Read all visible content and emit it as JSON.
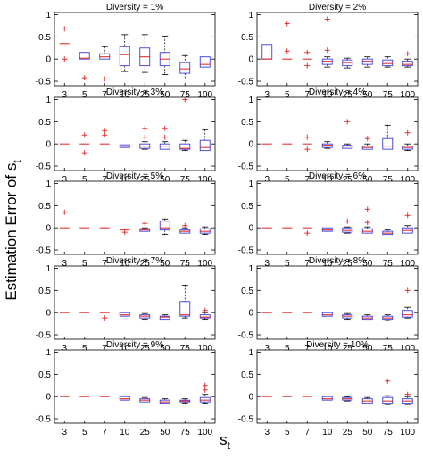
{
  "figure": {
    "ylabel": "Estimation Error of s",
    "ylabel_subscript": "t",
    "xlabel": "s",
    "xlabel_subscript": "t"
  },
  "colors": {
    "box": "#3b3bd9",
    "median": "#e02020",
    "outlier": "#e02020",
    "whisker": "#000000",
    "frame": "#000000"
  },
  "chart_data": [
    {
      "type": "box",
      "title": "Diversity = 1%",
      "categories": [
        "3",
        "5",
        "7",
        "10",
        "25",
        "50",
        "75",
        "100"
      ],
      "yticks": [
        "-0.5",
        "0",
        "0.5",
        "1"
      ],
      "ylim": [
        -0.6,
        1.05
      ],
      "boxes": [
        {
          "q1": 0.35,
          "median": 0.35,
          "q3": 0.35,
          "wlo": 0.35,
          "whi": 0.35,
          "outliers": [
            0.68,
            0.0
          ]
        },
        {
          "q1": 0.0,
          "median": 0.02,
          "q3": 0.15,
          "wlo": 0.0,
          "whi": 0.15,
          "outliers": [
            -0.42
          ]
        },
        {
          "q1": 0.0,
          "median": 0.05,
          "q3": 0.12,
          "wlo": 0.0,
          "whi": 0.28,
          "outliers": [
            -0.45
          ]
        },
        {
          "q1": -0.15,
          "median": 0.1,
          "q3": 0.28,
          "wlo": -0.28,
          "whi": 0.55,
          "outliers": []
        },
        {
          "q1": -0.15,
          "median": 0.05,
          "q3": 0.25,
          "wlo": -0.3,
          "whi": 0.55,
          "outliers": []
        },
        {
          "q1": -0.15,
          "median": 0.0,
          "q3": 0.15,
          "wlo": -0.35,
          "whi": 0.52,
          "outliers": []
        },
        {
          "q1": -0.32,
          "median": -0.22,
          "q3": -0.08,
          "wlo": -0.45,
          "whi": 0.08,
          "outliers": []
        },
        {
          "q1": -0.18,
          "median": -0.12,
          "q3": 0.05,
          "wlo": -0.18,
          "whi": 0.05,
          "outliers": []
        }
      ]
    },
    {
      "type": "box",
      "title": "Diversity = 2%",
      "categories": [
        "3",
        "5",
        "7",
        "10",
        "25",
        "50",
        "75",
        "100"
      ],
      "yticks": [
        "-0.5",
        "0",
        "0.5",
        "1"
      ],
      "ylim": [
        -0.6,
        1.05
      ],
      "boxes": [
        {
          "q1": 0.0,
          "median": 0.0,
          "q3": 0.33,
          "wlo": 0.0,
          "whi": 0.33,
          "outliers": []
        },
        {
          "q1": 0.0,
          "median": 0.0,
          "q3": 0.0,
          "wlo": 0.0,
          "whi": 0.0,
          "outliers": [
            0.8,
            0.18
          ]
        },
        {
          "q1": 0.0,
          "median": 0.0,
          "q3": 0.0,
          "wlo": 0.0,
          "whi": 0.0,
          "outliers": [
            0.15,
            -0.15
          ]
        },
        {
          "q1": -0.12,
          "median": -0.05,
          "q3": 0.0,
          "wlo": -0.18,
          "whi": 0.05,
          "outliers": [
            0.9,
            0.2
          ]
        },
        {
          "q1": -0.15,
          "median": -0.08,
          "q3": -0.02,
          "wlo": -0.2,
          "whi": 0.02,
          "outliers": []
        },
        {
          "q1": -0.12,
          "median": -0.05,
          "q3": 0.0,
          "wlo": -0.18,
          "whi": 0.05,
          "outliers": []
        },
        {
          "q1": -0.15,
          "median": -0.1,
          "q3": -0.02,
          "wlo": -0.18,
          "whi": 0.05,
          "outliers": []
        },
        {
          "q1": -0.15,
          "median": -0.12,
          "q3": -0.05,
          "wlo": -0.18,
          "whi": 0.0,
          "outliers": [
            0.12
          ]
        }
      ]
    },
    {
      "type": "box",
      "title": "Diversity = 3%",
      "categories": [
        "3",
        "5",
        "7",
        "10",
        "25",
        "50",
        "75",
        "100"
      ],
      "yticks": [
        "-0.5",
        "0",
        "0.5",
        "1"
      ],
      "ylim": [
        -0.6,
        1.05
      ],
      "boxes": [
        {
          "q1": 0.0,
          "median": 0.0,
          "q3": 0.0,
          "wlo": 0.0,
          "whi": 0.0,
          "outliers": []
        },
        {
          "q1": 0.0,
          "median": 0.0,
          "q3": 0.0,
          "wlo": 0.0,
          "whi": 0.0,
          "outliers": [
            0.2,
            -0.2
          ]
        },
        {
          "q1": 0.0,
          "median": 0.0,
          "q3": 0.0,
          "wlo": 0.0,
          "whi": 0.0,
          "outliers": [
            0.3,
            0.2
          ]
        },
        {
          "q1": -0.08,
          "median": -0.05,
          "q3": -0.02,
          "wlo": -0.08,
          "whi": -0.02,
          "outliers": []
        },
        {
          "q1": -0.1,
          "median": -0.05,
          "q3": 0.0,
          "wlo": -0.12,
          "whi": 0.05,
          "outliers": [
            0.35,
            0.15
          ]
        },
        {
          "q1": -0.12,
          "median": -0.05,
          "q3": 0.0,
          "wlo": -0.12,
          "whi": 0.05,
          "outliers": [
            0.35,
            0.15
          ]
        },
        {
          "q1": -0.12,
          "median": -0.1,
          "q3": 0.0,
          "wlo": -0.15,
          "whi": 0.08,
          "outliers": [
            1.0
          ]
        },
        {
          "q1": -0.15,
          "median": -0.08,
          "q3": 0.08,
          "wlo": -0.15,
          "whi": 0.32,
          "outliers": []
        }
      ]
    },
    {
      "type": "box",
      "title": "Diversity = 4%",
      "categories": [
        "3",
        "5",
        "7",
        "10",
        "25",
        "50",
        "75",
        "100"
      ],
      "yticks": [
        "-0.5",
        "0",
        "0.5",
        "1"
      ],
      "ylim": [
        -0.6,
        1.05
      ],
      "boxes": [
        {
          "q1": 0.0,
          "median": 0.0,
          "q3": 0.0,
          "wlo": 0.0,
          "whi": 0.0,
          "outliers": []
        },
        {
          "q1": 0.0,
          "median": 0.0,
          "q3": 0.0,
          "wlo": 0.0,
          "whi": 0.0,
          "outliers": []
        },
        {
          "q1": 0.0,
          "median": 0.0,
          "q3": 0.0,
          "wlo": 0.0,
          "whi": 0.0,
          "outliers": [
            0.15,
            -0.12
          ]
        },
        {
          "q1": -0.08,
          "median": -0.03,
          "q3": 0.0,
          "wlo": -0.1,
          "whi": 0.05,
          "outliers": []
        },
        {
          "q1": -0.1,
          "median": -0.05,
          "q3": -0.03,
          "wlo": -0.1,
          "whi": 0.0,
          "outliers": [
            0.5
          ]
        },
        {
          "q1": -0.12,
          "median": -0.08,
          "q3": -0.05,
          "wlo": -0.12,
          "whi": 0.0,
          "outliers": [
            0.12
          ]
        },
        {
          "q1": -0.12,
          "median": -0.05,
          "q3": 0.12,
          "wlo": -0.12,
          "whi": 0.42,
          "outliers": []
        },
        {
          "q1": -0.12,
          "median": -0.08,
          "q3": -0.05,
          "wlo": -0.15,
          "whi": 0.0,
          "outliers": [
            0.25
          ]
        }
      ]
    },
    {
      "type": "box",
      "title": "Diversity = 5%",
      "categories": [
        "3",
        "5",
        "7",
        "10",
        "25",
        "50",
        "75",
        "100"
      ],
      "yticks": [
        "-0.5",
        "0",
        "0.5",
        "1"
      ],
      "ylim": [
        -0.6,
        1.05
      ],
      "boxes": [
        {
          "q1": 0.0,
          "median": 0.0,
          "q3": 0.0,
          "wlo": 0.0,
          "whi": 0.0,
          "outliers": [
            0.35
          ]
        },
        {
          "q1": 0.0,
          "median": 0.0,
          "q3": 0.0,
          "wlo": 0.0,
          "whi": 0.0,
          "outliers": []
        },
        {
          "q1": 0.0,
          "median": 0.0,
          "q3": 0.0,
          "wlo": 0.0,
          "whi": 0.0,
          "outliers": []
        },
        {
          "q1": -0.05,
          "median": -0.05,
          "q3": -0.05,
          "wlo": -0.05,
          "whi": -0.05,
          "outliers": [
            -0.1
          ]
        },
        {
          "q1": -0.08,
          "median": -0.05,
          "q3": -0.02,
          "wlo": -0.08,
          "whi": 0.0,
          "outliers": [
            0.1
          ]
        },
        {
          "q1": -0.05,
          "median": 0.0,
          "q3": 0.15,
          "wlo": -0.15,
          "whi": 0.2,
          "outliers": []
        },
        {
          "q1": -0.12,
          "median": -0.08,
          "q3": -0.05,
          "wlo": -0.12,
          "whi": 0.0,
          "outliers": [
            0.05
          ]
        },
        {
          "q1": -0.12,
          "median": -0.08,
          "q3": -0.02,
          "wlo": -0.15,
          "whi": 0.02,
          "outliers": []
        }
      ]
    },
    {
      "type": "box",
      "title": "Diversity = 6%",
      "categories": [
        "3",
        "5",
        "7",
        "10",
        "25",
        "50",
        "75",
        "100"
      ],
      "yticks": [
        "-0.5",
        "0",
        "0.5",
        "1"
      ],
      "ylim": [
        -0.6,
        1.05
      ],
      "boxes": [
        {
          "q1": 0.0,
          "median": 0.0,
          "q3": 0.0,
          "wlo": 0.0,
          "whi": 0.0,
          "outliers": []
        },
        {
          "q1": 0.0,
          "median": 0.0,
          "q3": 0.0,
          "wlo": 0.0,
          "whi": 0.0,
          "outliers": []
        },
        {
          "q1": 0.0,
          "median": 0.0,
          "q3": 0.0,
          "wlo": 0.0,
          "whi": 0.0,
          "outliers": [
            -0.12
          ]
        },
        {
          "q1": -0.08,
          "median": -0.05,
          "q3": 0.0,
          "wlo": -0.08,
          "whi": 0.0,
          "outliers": []
        },
        {
          "q1": -0.1,
          "median": -0.06,
          "q3": 0.0,
          "wlo": -0.12,
          "whi": 0.02,
          "outliers": [
            0.15
          ]
        },
        {
          "q1": -0.12,
          "median": -0.08,
          "q3": -0.02,
          "wlo": -0.12,
          "whi": 0.02,
          "outliers": [
            0.42,
            0.12
          ]
        },
        {
          "q1": -0.15,
          "median": -0.12,
          "q3": -0.08,
          "wlo": -0.15,
          "whi": -0.05,
          "outliers": []
        },
        {
          "q1": -0.12,
          "median": -0.06,
          "q3": 0.0,
          "wlo": -0.12,
          "whi": 0.05,
          "outliers": [
            0.28
          ]
        }
      ]
    },
    {
      "type": "box",
      "title": "Diversity = 7%",
      "categories": [
        "3",
        "5",
        "7",
        "10",
        "25",
        "50",
        "75",
        "100"
      ],
      "yticks": [
        "-0.5",
        "0",
        "0.5",
        "1"
      ],
      "ylim": [
        -0.6,
        1.05
      ],
      "boxes": [
        {
          "q1": 0.0,
          "median": 0.0,
          "q3": 0.0,
          "wlo": 0.0,
          "whi": 0.0,
          "outliers": []
        },
        {
          "q1": 0.0,
          "median": 0.0,
          "q3": 0.0,
          "wlo": 0.0,
          "whi": 0.0,
          "outliers": []
        },
        {
          "q1": 0.0,
          "median": 0.0,
          "q3": 0.0,
          "wlo": 0.0,
          "whi": 0.0,
          "outliers": [
            -0.12
          ]
        },
        {
          "q1": -0.08,
          "median": -0.05,
          "q3": 0.0,
          "wlo": -0.08,
          "whi": 0.0,
          "outliers": []
        },
        {
          "q1": -0.12,
          "median": -0.08,
          "q3": -0.05,
          "wlo": -0.15,
          "whi": -0.02,
          "outliers": []
        },
        {
          "q1": -0.15,
          "median": -0.1,
          "q3": -0.08,
          "wlo": -0.15,
          "whi": -0.05,
          "outliers": []
        },
        {
          "q1": -0.08,
          "median": -0.05,
          "q3": 0.25,
          "wlo": -0.12,
          "whi": 0.62,
          "outliers": []
        },
        {
          "q1": -0.12,
          "median": -0.1,
          "q3": -0.05,
          "wlo": -0.15,
          "whi": 0.0,
          "outliers": [
            0.05
          ]
        }
      ]
    },
    {
      "type": "box",
      "title": "Diversity = 8%",
      "categories": [
        "3",
        "5",
        "7",
        "10",
        "25",
        "50",
        "75",
        "100"
      ],
      "yticks": [
        "-0.5",
        "0",
        "0.5",
        "1"
      ],
      "ylim": [
        -0.6,
        1.05
      ],
      "boxes": [
        {
          "q1": 0.0,
          "median": 0.0,
          "q3": 0.0,
          "wlo": 0.0,
          "whi": 0.0,
          "outliers": []
        },
        {
          "q1": 0.0,
          "median": 0.0,
          "q3": 0.0,
          "wlo": 0.0,
          "whi": 0.0,
          "outliers": []
        },
        {
          "q1": 0.0,
          "median": 0.0,
          "q3": 0.0,
          "wlo": 0.0,
          "whi": 0.0,
          "outliers": []
        },
        {
          "q1": -0.08,
          "median": -0.05,
          "q3": 0.0,
          "wlo": -0.08,
          "whi": 0.0,
          "outliers": []
        },
        {
          "q1": -0.12,
          "median": -0.08,
          "q3": -0.05,
          "wlo": -0.15,
          "whi": -0.02,
          "outliers": []
        },
        {
          "q1": -0.15,
          "median": -0.12,
          "q3": -0.08,
          "wlo": -0.15,
          "whi": -0.05,
          "outliers": []
        },
        {
          "q1": -0.15,
          "median": -0.12,
          "q3": -0.08,
          "wlo": -0.18,
          "whi": -0.05,
          "outliers": []
        },
        {
          "q1": -0.1,
          "median": -0.05,
          "q3": 0.05,
          "wlo": -0.12,
          "whi": 0.12,
          "outliers": [
            0.5
          ]
        }
      ]
    },
    {
      "type": "box",
      "title": "Diversity = 9%",
      "categories": [
        "3",
        "5",
        "7",
        "10",
        "25",
        "50",
        "75",
        "100"
      ],
      "yticks": [
        "-0.5",
        "0",
        "0.5",
        "1"
      ],
      "ylim": [
        -0.6,
        1.05
      ],
      "boxes": [
        {
          "q1": 0.0,
          "median": 0.0,
          "q3": 0.0,
          "wlo": 0.0,
          "whi": 0.0,
          "outliers": []
        },
        {
          "q1": 0.0,
          "median": 0.0,
          "q3": 0.0,
          "wlo": 0.0,
          "whi": 0.0,
          "outliers": []
        },
        {
          "q1": 0.0,
          "median": 0.0,
          "q3": 0.0,
          "wlo": 0.0,
          "whi": 0.0,
          "outliers": []
        },
        {
          "q1": -0.08,
          "median": -0.05,
          "q3": 0.0,
          "wlo": -0.08,
          "whi": 0.0,
          "outliers": []
        },
        {
          "q1": -0.12,
          "median": -0.08,
          "q3": -0.05,
          "wlo": -0.12,
          "whi": -0.02,
          "outliers": []
        },
        {
          "q1": -0.15,
          "median": -0.12,
          "q3": -0.08,
          "wlo": -0.15,
          "whi": -0.05,
          "outliers": []
        },
        {
          "q1": -0.12,
          "median": -0.1,
          "q3": -0.08,
          "wlo": -0.15,
          "whi": -0.05,
          "outliers": []
        },
        {
          "q1": -0.12,
          "median": -0.08,
          "q3": -0.02,
          "wlo": -0.15,
          "whi": 0.05,
          "outliers": [
            0.25,
            0.15
          ]
        }
      ]
    },
    {
      "type": "box",
      "title": "Diversity = 10%",
      "categories": [
        "3",
        "5",
        "7",
        "10",
        "25",
        "50",
        "75",
        "100"
      ],
      "yticks": [
        "-0.5",
        "0",
        "0.5",
        "1"
      ],
      "ylim": [
        -0.6,
        1.05
      ],
      "boxes": [
        {
          "q1": 0.0,
          "median": 0.0,
          "q3": 0.0,
          "wlo": 0.0,
          "whi": 0.0,
          "outliers": []
        },
        {
          "q1": 0.0,
          "median": 0.0,
          "q3": 0.0,
          "wlo": 0.0,
          "whi": 0.0,
          "outliers": []
        },
        {
          "q1": 0.0,
          "median": 0.0,
          "q3": 0.0,
          "wlo": 0.0,
          "whi": 0.0,
          "outliers": []
        },
        {
          "q1": -0.08,
          "median": -0.05,
          "q3": 0.0,
          "wlo": -0.08,
          "whi": 0.0,
          "outliers": []
        },
        {
          "q1": -0.08,
          "median": -0.05,
          "q3": -0.02,
          "wlo": -0.1,
          "whi": 0.0,
          "outliers": []
        },
        {
          "q1": -0.15,
          "median": -0.1,
          "q3": -0.05,
          "wlo": -0.15,
          "whi": -0.02,
          "outliers": []
        },
        {
          "q1": -0.15,
          "median": -0.1,
          "q3": -0.02,
          "wlo": -0.18,
          "whi": 0.02,
          "outliers": [
            0.35
          ]
        },
        {
          "q1": -0.15,
          "median": -0.1,
          "q3": -0.05,
          "wlo": -0.18,
          "whi": 0.0,
          "outliers": [
            0.05
          ]
        }
      ]
    }
  ]
}
